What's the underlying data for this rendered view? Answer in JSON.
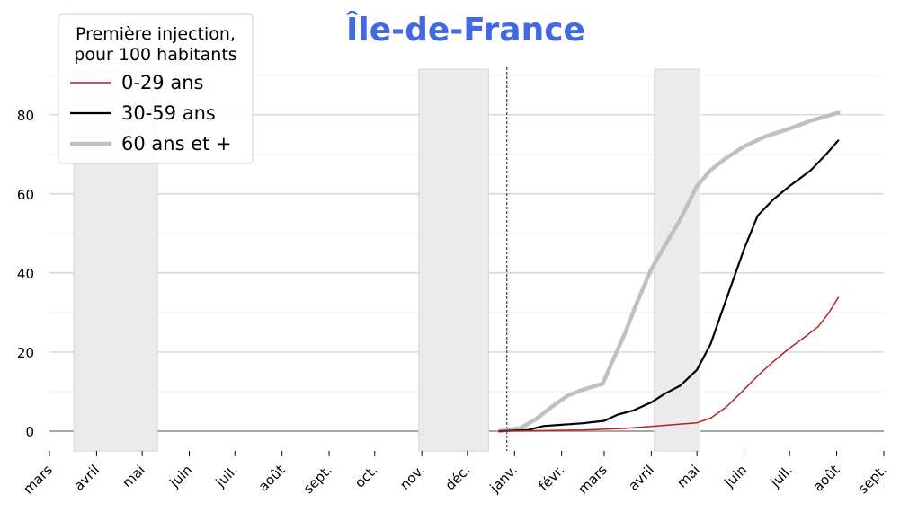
{
  "chart_data": {
    "type": "line",
    "title": "Île-de-France",
    "title_color": "#4169e1",
    "xlabel": "",
    "ylabel": "",
    "x_unit": "month-start",
    "x_ticks": [
      "mars",
      "avril",
      "mai",
      "juin",
      "juil.",
      "août",
      "sept.",
      "oct.",
      "nov.",
      "déc.",
      "janv.",
      "févr.",
      "mars",
      "avril",
      "mai",
      "juin",
      "juil.",
      "août",
      "sept."
    ],
    "x_tick_dates": [
      "2020-03-01",
      "2020-04-01",
      "2020-05-01",
      "2020-06-01",
      "2020-07-01",
      "2020-08-01",
      "2020-09-01",
      "2020-10-01",
      "2020-11-01",
      "2020-12-01",
      "2021-01-01",
      "2021-02-01",
      "2021-03-01",
      "2021-04-01",
      "2021-05-01",
      "2021-06-01",
      "2021-07-01",
      "2021-08-01",
      "2021-09-01"
    ],
    "xlim": [
      "2020-03-01",
      "2021-09-01"
    ],
    "ylim": [
      -5,
      92
    ],
    "y_ticks": [
      0,
      20,
      40,
      60,
      80
    ],
    "grid": true,
    "legend": {
      "title": "Première injection,\npour 100 habitants",
      "placement": "top-left"
    },
    "reference_line": {
      "date": "2020-12-27"
    },
    "shaded_periods": [
      {
        "start": "2020-03-17",
        "end": "2020-05-11",
        "color": "#ebebeb"
      },
      {
        "start": "2020-10-30",
        "end": "2020-12-15",
        "color": "#ebebeb"
      },
      {
        "start": "2021-04-03",
        "end": "2021-05-03",
        "color": "#ebebeb"
      }
    ],
    "series": [
      {
        "name": "0-29 ans",
        "color": "#b22222",
        "width": 1.5,
        "points": [
          [
            "2020-12-22",
            0
          ],
          [
            "2021-01-15",
            0.1
          ],
          [
            "2021-02-15",
            0.3
          ],
          [
            "2021-03-15",
            0.7
          ],
          [
            "2021-04-01",
            1.2
          ],
          [
            "2021-04-15",
            1.6
          ],
          [
            "2021-05-01",
            2.1
          ],
          [
            "2021-05-10",
            3.3
          ],
          [
            "2021-05-20",
            6
          ],
          [
            "2021-06-01",
            10.5
          ],
          [
            "2021-06-10",
            14
          ],
          [
            "2021-06-20",
            17.5
          ],
          [
            "2021-07-01",
            21
          ],
          [
            "2021-07-10",
            23.5
          ],
          [
            "2021-07-20",
            26.5
          ],
          [
            "2021-07-27",
            30
          ],
          [
            "2021-08-02",
            33.8
          ]
        ]
      },
      {
        "name": "30-59 ans",
        "color": "#000000",
        "width": 2.2,
        "points": [
          [
            "2020-12-22",
            0
          ],
          [
            "2021-01-10",
            0.3
          ],
          [
            "2021-01-20",
            1.3
          ],
          [
            "2021-02-01",
            1.6
          ],
          [
            "2021-02-15",
            2
          ],
          [
            "2021-03-01",
            2.6
          ],
          [
            "2021-03-10",
            4.2
          ],
          [
            "2021-03-20",
            5.2
          ],
          [
            "2021-04-01",
            7.3
          ],
          [
            "2021-04-10",
            9.5
          ],
          [
            "2021-04-20",
            11.5
          ],
          [
            "2021-05-01",
            15.5
          ],
          [
            "2021-05-10",
            22
          ],
          [
            "2021-05-20",
            33
          ],
          [
            "2021-06-01",
            46
          ],
          [
            "2021-06-10",
            54.5
          ],
          [
            "2021-06-20",
            58.5
          ],
          [
            "2021-07-01",
            62
          ],
          [
            "2021-07-15",
            66
          ],
          [
            "2021-07-25",
            70
          ],
          [
            "2021-08-02",
            73.5
          ]
        ]
      },
      {
        "name": "60 ans et +",
        "color": "#c0c0c0",
        "width": 4.5,
        "points": [
          [
            "2020-12-22",
            0
          ],
          [
            "2021-01-05",
            0.8
          ],
          [
            "2021-01-15",
            3
          ],
          [
            "2021-01-25",
            6
          ],
          [
            "2021-02-05",
            9
          ],
          [
            "2021-02-15",
            10.5
          ],
          [
            "2021-02-28",
            12
          ],
          [
            "2021-03-08",
            19
          ],
          [
            "2021-03-15",
            25
          ],
          [
            "2021-03-22",
            32
          ],
          [
            "2021-04-01",
            41
          ],
          [
            "2021-04-10",
            47
          ],
          [
            "2021-04-20",
            53.5
          ],
          [
            "2021-05-01",
            62
          ],
          [
            "2021-05-10",
            66
          ],
          [
            "2021-05-20",
            69
          ],
          [
            "2021-06-01",
            72
          ],
          [
            "2021-06-15",
            74.5
          ],
          [
            "2021-07-01",
            76.5
          ],
          [
            "2021-07-15",
            78.5
          ],
          [
            "2021-08-02",
            80.5
          ]
        ]
      }
    ]
  }
}
